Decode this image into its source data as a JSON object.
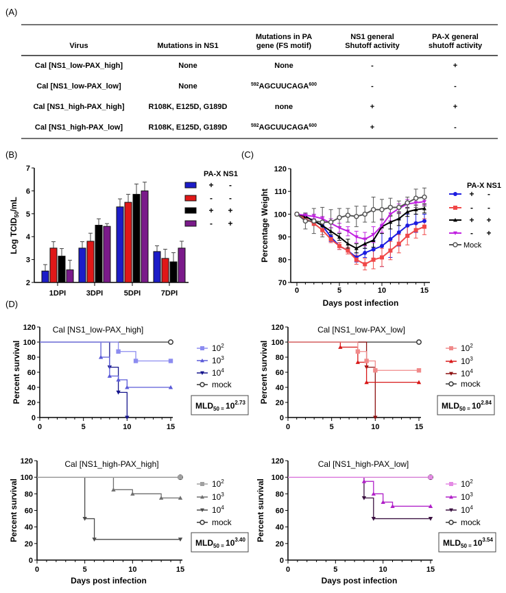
{
  "panel_labels": {
    "a": "(A)",
    "b": "(B)",
    "c": "(C)",
    "d": "(D)"
  },
  "table": {
    "headers": [
      [
        "Virus"
      ],
      [
        "Mutations in NS1"
      ],
      [
        "Mutations in PA",
        "gene (FS motif)"
      ],
      [
        "NS1 general",
        "Shutoff activity"
      ],
      [
        "PA-X general",
        "shutoff activity"
      ]
    ],
    "rows": [
      [
        "Cal [NS1_low-PAX_high]",
        "None",
        {
          "text": "None"
        },
        "-",
        "+"
      ],
      [
        "Cal [NS1_low-PAX_low]",
        "None",
        {
          "pre": "592",
          "text": "AGCUUCAGA",
          "post": "600"
        },
        "-",
        "-"
      ],
      [
        "Cal [NS1_high-PAX_high]",
        "R108K, E125D, G189D",
        {
          "text": "none"
        },
        "+",
        "+"
      ],
      [
        "Cal [NS1_high-PAX_low]",
        "R108K, E125D, G189D",
        {
          "pre": "592",
          "text": "AGCUUCAGA",
          "post": "600"
        },
        "+",
        "-"
      ]
    ]
  },
  "chart_data": [
    {
      "type": "bar",
      "panel": "B",
      "ylabel_main": "Log TCID",
      "ylabel_sub": "50",
      "ylabel_tail": "/mL",
      "ylim": [
        2,
        7
      ],
      "yticks": [
        "2",
        "3",
        "4",
        "5",
        "6",
        "7"
      ],
      "categories": [
        "1DPI",
        "3DPI",
        "5DPI",
        "7DPI"
      ],
      "legend_header": "PA-X NS1",
      "series": [
        {
          "pax": "+",
          "ns1": "-",
          "color": "#1c1cc8",
          "values": [
            2.5,
            3.5,
            5.3,
            3.35
          ],
          "err": [
            0.28,
            0.28,
            0.35,
            0.25
          ]
        },
        {
          "pax": "-",
          "ns1": "-",
          "color": "#e01818",
          "values": [
            3.5,
            3.8,
            5.5,
            3.05
          ],
          "err": [
            0.28,
            0.35,
            0.35,
            0.4
          ]
        },
        {
          "pax": "+",
          "ns1": "+",
          "color": "#000000",
          "values": [
            3.15,
            4.5,
            5.85,
            2.9
          ],
          "err": [
            0.33,
            0.28,
            0.45,
            0.4
          ]
        },
        {
          "pax": "-",
          "ns1": "+",
          "color": "#7a1a8a",
          "values": [
            2.55,
            4.45,
            6.0,
            3.5
          ],
          "err": [
            0.42,
            0.12,
            0.38,
            0.3
          ]
        }
      ]
    },
    {
      "type": "line",
      "panel": "C",
      "ylabel": "Percentage Weight",
      "xlabel": "Days post infection",
      "xlim": [
        0,
        15
      ],
      "ylim": [
        70,
        120
      ],
      "xticks": [
        "0",
        "5",
        "10",
        "15"
      ],
      "yticks": [
        "70",
        "80",
        "90",
        "100",
        "110",
        "120"
      ],
      "x": [
        0,
        1,
        2,
        3,
        4,
        5,
        6,
        7,
        8,
        9,
        10,
        11,
        12,
        13,
        14,
        15
      ],
      "legend_header": "PA-X NS1",
      "series": [
        {
          "pax": "+",
          "ns1": "-",
          "color": "#1c1ce0",
          "marker": "circle",
          "values": [
            100,
            99,
            97,
            95,
            90,
            86,
            84,
            81,
            83,
            84.5,
            86,
            89,
            92,
            95,
            96,
            97
          ],
          "err": [
            0,
            1,
            1,
            2,
            2,
            1.5,
            1.5,
            2,
            2,
            4,
            9,
            8,
            6,
            5,
            4,
            3
          ]
        },
        {
          "pax": "-",
          "ns1": "-",
          "color": "#f04848",
          "marker": "square",
          "values": [
            100,
            98,
            96,
            93,
            89,
            86,
            84,
            80,
            78,
            80,
            81,
            84,
            87,
            90.5,
            93,
            94.5
          ],
          "err": [
            0,
            1,
            1,
            2,
            1.5,
            1.5,
            1.5,
            2,
            2.5,
            4,
            4,
            4,
            4,
            4,
            3.5,
            3.5
          ]
        },
        {
          "pax": "+",
          "ns1": "+",
          "color": "#000000",
          "marker": "triangle-up",
          "values": [
            100,
            99,
            97,
            95,
            92.5,
            90,
            87,
            85,
            87,
            88.5,
            94.5,
            96.5,
            98,
            101,
            102,
            102.5
          ],
          "err": [
            0,
            1,
            1,
            1.5,
            1.5,
            1.5,
            2,
            2,
            2,
            3,
            3,
            3,
            3,
            2,
            2,
            2
          ]
        },
        {
          "pax": "-",
          "ns1": "+",
          "color": "#c020e0",
          "marker": "triangle-down",
          "values": [
            100,
            99.5,
            99,
            98,
            96,
            94,
            92.5,
            90,
            89,
            91,
            95,
            100,
            102.5,
            104.5,
            105,
            105.5
          ],
          "err": [
            0,
            1,
            1,
            1,
            2,
            2,
            2,
            2.5,
            3,
            3.5,
            3,
            3,
            2,
            2,
            2,
            1.5
          ]
        },
        {
          "name": "Mock",
          "color": "#555555",
          "marker": "open-circle",
          "values": [
            100,
            97,
            97,
            96.5,
            96.5,
            98.5,
            99.5,
            99,
            100,
            102,
            102,
            103,
            103,
            105,
            107,
            107.5
          ],
          "err": [
            0,
            3.5,
            5.5,
            6.5,
            5.5,
            4,
            3,
            4.5,
            3.5,
            5.5,
            4.5,
            4,
            2.8,
            2.5,
            4,
            4
          ]
        }
      ]
    },
    {
      "type": "step",
      "panel": "D1",
      "title": "Cal [NS1_low-PAX_high]",
      "ylabel": "Percent survival",
      "xlabel": "",
      "xlim": [
        0,
        15
      ],
      "ylim": [
        0,
        120
      ],
      "xticks": [
        "0",
        "5",
        "10",
        "15"
      ],
      "yticks": [
        "0",
        "20",
        "40",
        "60",
        "80",
        "100",
        "120"
      ],
      "mld_label": "MLD",
      "mld_sub": "50 = ",
      "mld_base": "10",
      "mld_exp": "2.73",
      "series": [
        {
          "base": "10",
          "exp": "2",
          "color": "#8c8cf0",
          "marker": "square",
          "points": [
            [
              0,
              100
            ],
            [
              9,
              87.5
            ],
            [
              11,
              75
            ],
            [
              15,
              75
            ]
          ]
        },
        {
          "base": "10",
          "exp": "3",
          "color": "#5a5ad8",
          "marker": "triangle-up",
          "points": [
            [
              0,
              100
            ],
            [
              7,
              80
            ],
            [
              8,
              55
            ],
            [
              9,
              50
            ],
            [
              10,
              40
            ],
            [
              15,
              40
            ]
          ]
        },
        {
          "base": "10",
          "exp": "4",
          "color": "#14148c",
          "marker": "triangle-down",
          "points": [
            [
              0,
              100
            ],
            [
              8,
              66.7
            ],
            [
              9,
              33.3
            ],
            [
              10,
              0
            ]
          ]
        },
        {
          "name": "mock",
          "color": "#333333",
          "marker": "open-circle",
          "points": [
            [
              0,
              100
            ],
            [
              15,
              100
            ]
          ]
        }
      ]
    },
    {
      "type": "step",
      "panel": "D2",
      "title": "Cal [NS1_low-PAX_low]",
      "ylabel": "Percent survival",
      "xlabel": "",
      "xlim": [
        0,
        15
      ],
      "ylim": [
        0,
        120
      ],
      "xticks": [
        "0",
        "5",
        "10",
        "15"
      ],
      "yticks": [
        "0",
        "20",
        "40",
        "60",
        "80",
        "100",
        "120"
      ],
      "mld_label": "MLD",
      "mld_sub": "50 = ",
      "mld_base": "10",
      "mld_exp": "2.84",
      "series": [
        {
          "base": "10",
          "exp": "2",
          "color": "#f08a8a",
          "marker": "square",
          "points": [
            [
              0,
              100
            ],
            [
              8,
              87.5
            ],
            [
              9,
              75
            ],
            [
              10,
              62.5
            ],
            [
              15,
              62.5
            ]
          ]
        },
        {
          "base": "10",
          "exp": "3",
          "color": "#d81818",
          "marker": "triangle-up",
          "points": [
            [
              0,
              100
            ],
            [
              6,
              93.3
            ],
            [
              8,
              73.3
            ],
            [
              9,
              46.7
            ],
            [
              15,
              46.7
            ]
          ]
        },
        {
          "base": "10",
          "exp": "4",
          "color": "#8c1010",
          "marker": "triangle-down",
          "points": [
            [
              0,
              100
            ],
            [
              9,
              66.7
            ],
            [
              10,
              0
            ]
          ]
        },
        {
          "name": "mock",
          "color": "#333333",
          "marker": "open-circle",
          "points": [
            [
              0,
              100
            ],
            [
              15,
              100
            ]
          ]
        }
      ]
    },
    {
      "type": "step",
      "panel": "D3",
      "title": "Cal [NS1_high-PAX_high]",
      "ylabel": "Percent survival",
      "xlabel": "Days post infection",
      "xlim": [
        0,
        15
      ],
      "ylim": [
        0,
        120
      ],
      "xticks": [
        "0",
        "5",
        "10",
        "15"
      ],
      "yticks": [
        "0",
        "20",
        "40",
        "60",
        "80",
        "100",
        "120"
      ],
      "mld_label": "MLD",
      "mld_sub": "50 = ",
      "mld_base": "10",
      "mld_exp": "3.40",
      "series": [
        {
          "base": "10",
          "exp": "2",
          "color": "#a0a0a0",
          "marker": "square",
          "points": [
            [
              0,
              100
            ],
            [
              15,
              100
            ]
          ]
        },
        {
          "base": "10",
          "exp": "3",
          "color": "#6e6e6e",
          "marker": "triangle-up",
          "points": [
            [
              0,
              100
            ],
            [
              8,
              85
            ],
            [
              10,
              80
            ],
            [
              13,
              75
            ],
            [
              15,
              75
            ]
          ]
        },
        {
          "base": "10",
          "exp": "4",
          "color": "#4a4a4a",
          "marker": "triangle-down",
          "points": [
            [
              0,
              100
            ],
            [
              5,
              50
            ],
            [
              6,
              25
            ],
            [
              15,
              25
            ]
          ]
        },
        {
          "name": "mock",
          "color": "#333333",
          "marker": "open-circle",
          "points": [
            [
              0,
              100
            ],
            [
              15,
              100
            ]
          ]
        }
      ]
    },
    {
      "type": "step",
      "panel": "D4",
      "title": "Cal [NS1_high-PAX_low]",
      "ylabel": "Percent survival",
      "xlabel": "Days post infection",
      "xlim": [
        0,
        15
      ],
      "ylim": [
        0,
        120
      ],
      "xticks": [
        "0",
        "5",
        "10",
        "15"
      ],
      "yticks": [
        "0",
        "20",
        "40",
        "60",
        "80",
        "100",
        "120"
      ],
      "mld_label": "MLD",
      "mld_sub": "50 = ",
      "mld_base": "10",
      "mld_exp": "3.54",
      "series": [
        {
          "base": "10",
          "exp": "2",
          "color": "#e48ae4",
          "marker": "square",
          "points": [
            [
              0,
              100
            ],
            [
              15,
              100
            ]
          ]
        },
        {
          "base": "10",
          "exp": "3",
          "color": "#b020c8",
          "marker": "triangle-up",
          "points": [
            [
              0,
              100
            ],
            [
              8,
              95
            ],
            [
              9,
              80
            ],
            [
              10,
              70
            ],
            [
              11,
              65
            ],
            [
              15,
              65
            ]
          ]
        },
        {
          "base": "10",
          "exp": "4",
          "color": "#3a1040",
          "marker": "triangle-down",
          "points": [
            [
              0,
              100
            ],
            [
              8,
              75
            ],
            [
              9,
              50
            ],
            [
              15,
              50
            ]
          ]
        },
        {
          "name": "mock",
          "color": "#333333",
          "marker": "open-circle",
          "points": [
            [
              0,
              100
            ],
            [
              15,
              100
            ]
          ]
        }
      ]
    }
  ]
}
